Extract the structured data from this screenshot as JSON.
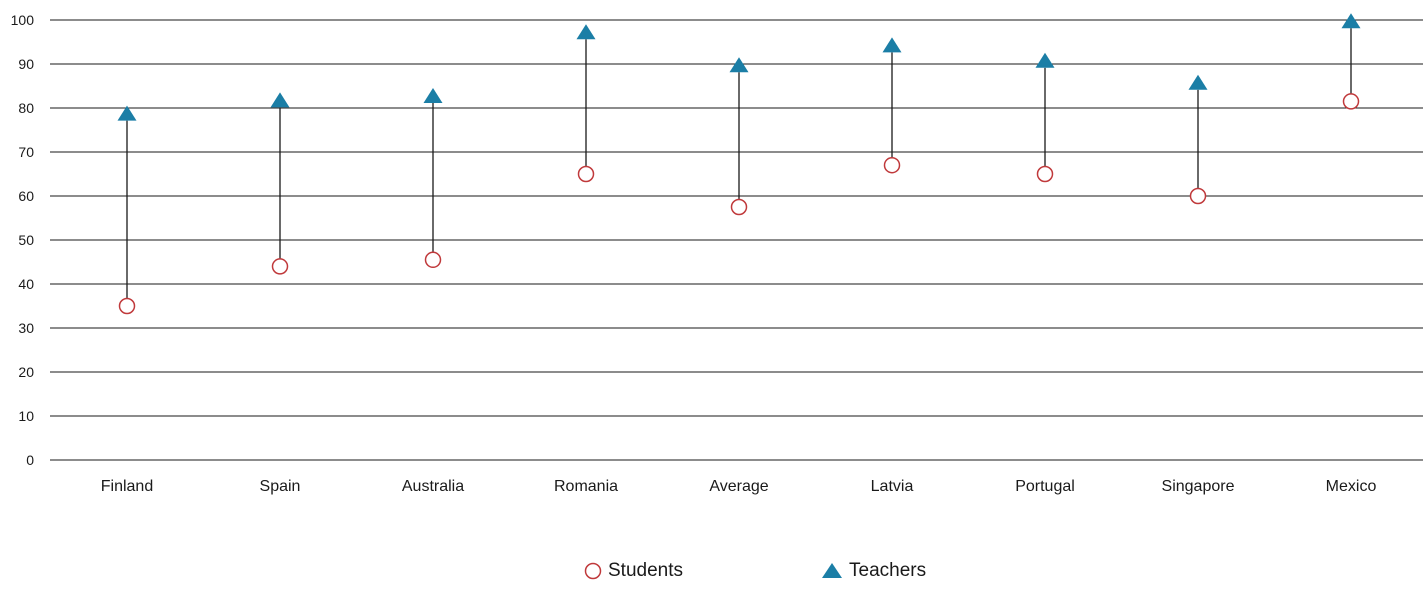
{
  "chart_data": {
    "type": "scatter",
    "subtype": "dumbbell",
    "title": "",
    "xlabel": "",
    "ylabel": "",
    "categories": [
      "Finland",
      "Spain",
      "Australia",
      "Romania",
      "Average",
      "Latvia",
      "Portugal",
      "Singapore",
      "Mexico"
    ],
    "ylim": [
      0,
      100
    ],
    "yticks": [
      "0",
      "10",
      "20",
      "30",
      "40",
      "50",
      "60",
      "70",
      "80",
      "90",
      "100"
    ],
    "grid": true,
    "legend_position": "bottom-center",
    "series": [
      {
        "name": "Students",
        "marker": "open-circle",
        "color": "#c0393b",
        "values": [
          35,
          44,
          45.5,
          65,
          57.5,
          67,
          65,
          60,
          81.5
        ]
      },
      {
        "name": "Teachers",
        "marker": "filled-triangle",
        "color": "#1b7ea6",
        "values": [
          78.5,
          81.5,
          82.5,
          97,
          89.5,
          94,
          90.5,
          85.5,
          99.5
        ]
      }
    ],
    "connector_color": "#1a1a1a"
  }
}
